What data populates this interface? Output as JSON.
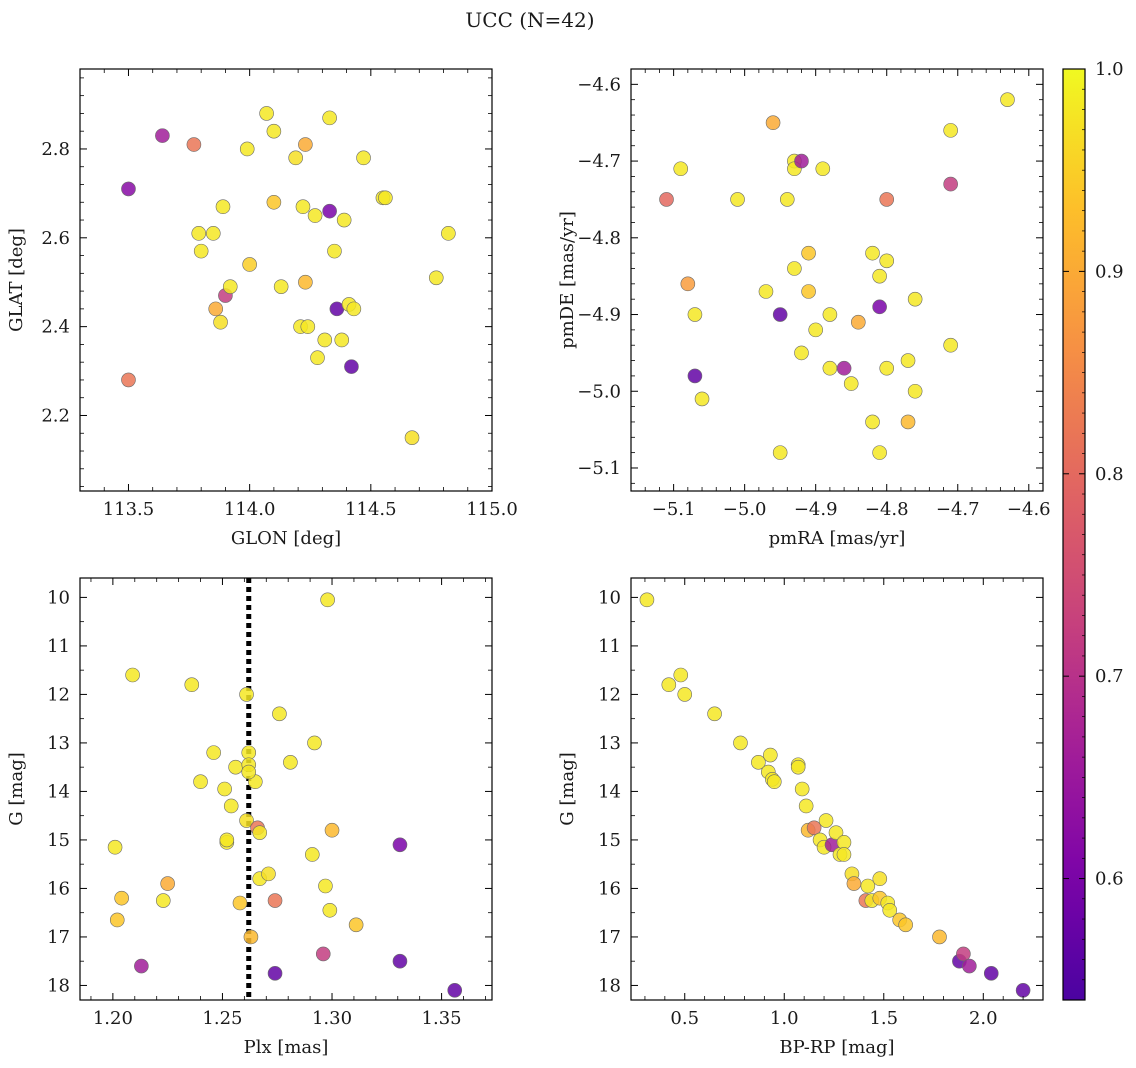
{
  "figure": {
    "title": "UCC (N=42)"
  },
  "colorbar": {
    "min": 0.54,
    "max": 1.0,
    "ticks": [
      0.6,
      0.7,
      0.8,
      0.9,
      1.0
    ],
    "tick_labels": [
      "0.6",
      "0.7",
      "0.8",
      "0.9",
      "1.0"
    ],
    "colormap": "plasma"
  },
  "chart_data": [
    {
      "type": "scatter",
      "name": "position",
      "xlabel": "GLON [deg]",
      "ylabel": "GLAT [deg]",
      "xlim": [
        113.3,
        115.0
      ],
      "ylim": [
        2.03,
        2.98
      ],
      "xticks": [
        113.5,
        114.0,
        114.5,
        115.0
      ],
      "xtick_labels": [
        "113.5",
        "114.0",
        "114.5",
        "115.0"
      ],
      "yticks": [
        2.2,
        2.4,
        2.6,
        2.8
      ],
      "ytick_labels": [
        "2.2",
        "2.4",
        "2.6",
        "2.8"
      ],
      "x": [
        113.5,
        113.5,
        113.64,
        113.77,
        113.79,
        113.8,
        113.85,
        113.86,
        113.88,
        113.89,
        113.9,
        113.92,
        113.99,
        114.0,
        114.07,
        114.1,
        114.1,
        114.13,
        114.19,
        114.21,
        114.22,
        114.23,
        114.23,
        114.24,
        114.27,
        114.28,
        114.31,
        114.33,
        114.33,
        114.35,
        114.36,
        114.38,
        114.39,
        114.41,
        114.42,
        114.43,
        114.47,
        114.55,
        114.56,
        114.67,
        114.77,
        114.82
      ],
      "y": [
        2.71,
        2.28,
        2.83,
        2.81,
        2.61,
        2.57,
        2.61,
        2.44,
        2.41,
        2.67,
        2.47,
        2.49,
        2.8,
        2.54,
        2.88,
        2.84,
        2.68,
        2.49,
        2.78,
        2.4,
        2.67,
        2.5,
        2.81,
        2.4,
        2.65,
        2.33,
        2.37,
        2.66,
        2.87,
        2.57,
        2.44,
        2.37,
        2.64,
        2.45,
        2.31,
        2.44,
        2.78,
        2.69,
        2.69,
        2.15,
        2.51,
        2.61
      ],
      "c": [
        0.62,
        0.82,
        0.66,
        0.82,
        0.98,
        0.98,
        0.98,
        0.9,
        0.97,
        0.98,
        0.72,
        0.98,
        0.98,
        0.95,
        0.98,
        0.98,
        0.94,
        0.98,
        0.97,
        0.98,
        0.98,
        0.92,
        0.9,
        0.98,
        0.98,
        0.98,
        0.98,
        0.6,
        0.98,
        0.98,
        0.57,
        0.98,
        0.98,
        0.98,
        0.57,
        0.98,
        0.98,
        0.98,
        0.98,
        0.97,
        0.98,
        0.98
      ]
    },
    {
      "type": "scatter",
      "name": "proper-motion",
      "xlabel": "pmRA [mas/yr]",
      "ylabel": "pmDE [mas/yr]",
      "xlim": [
        -5.16,
        -4.58
      ],
      "ylim": [
        -5.13,
        -4.58
      ],
      "xticks": [
        -5.1,
        -5.0,
        -4.9,
        -4.8,
        -4.7,
        -4.6
      ],
      "xtick_labels": [
        "−5.1",
        "−5.0",
        "−4.9",
        "−4.8",
        "−4.7",
        "−4.6"
      ],
      "yticks": [
        -5.1,
        -5.0,
        -4.9,
        -4.8,
        -4.7,
        -4.6
      ],
      "ytick_labels": [
        "−5.1",
        "−5.0",
        "−4.9",
        "−4.8",
        "−4.7",
        "−4.6"
      ],
      "x": [
        -5.11,
        -5.09,
        -5.08,
        -5.07,
        -5.07,
        -5.06,
        -5.01,
        -4.97,
        -4.96,
        -4.95,
        -4.95,
        -4.94,
        -4.93,
        -4.93,
        -4.93,
        -4.92,
        -4.92,
        -4.91,
        -4.91,
        -4.9,
        -4.89,
        -4.88,
        -4.88,
        -4.86,
        -4.85,
        -4.84,
        -4.82,
        -4.82,
        -4.81,
        -4.81,
        -4.81,
        -4.8,
        -4.8,
        -4.8,
        -4.77,
        -4.77,
        -4.76,
        -4.76,
        -4.71,
        -4.71,
        -4.71,
        -4.63
      ],
      "y": [
        -4.75,
        -4.71,
        -4.86,
        -4.98,
        -4.9,
        -5.01,
        -4.75,
        -4.87,
        -4.65,
        -4.9,
        -5.08,
        -4.75,
        -4.7,
        -4.71,
        -4.84,
        -4.7,
        -4.95,
        -4.82,
        -4.87,
        -4.92,
        -4.71,
        -4.97,
        -4.9,
        -4.97,
        -4.99,
        -4.91,
        -4.82,
        -5.04,
        -4.85,
        -4.89,
        -5.08,
        -4.83,
        -4.75,
        -4.97,
        -4.96,
        -5.04,
        -4.88,
        -5.0,
        -4.73,
        -4.66,
        -4.94,
        -4.62
      ],
      "c": [
        0.8,
        0.98,
        0.88,
        0.57,
        0.98,
        0.98,
        0.98,
        0.98,
        0.9,
        0.57,
        0.98,
        0.98,
        0.98,
        0.98,
        0.98,
        0.66,
        0.98,
        0.94,
        0.94,
        0.98,
        0.98,
        0.98,
        0.98,
        0.66,
        0.98,
        0.9,
        0.98,
        0.98,
        0.98,
        0.6,
        0.98,
        0.98,
        0.82,
        0.98,
        0.98,
        0.92,
        0.98,
        0.98,
        0.72,
        0.98,
        0.98,
        0.98
      ]
    },
    {
      "type": "scatter",
      "name": "parallax-magnitude",
      "xlabel": "Plx [mas]",
      "ylabel": "G [mag]",
      "xlim": [
        1.185,
        1.373
      ],
      "ylim": [
        18.3,
        9.6
      ],
      "xticks": [
        1.2,
        1.25,
        1.3,
        1.35
      ],
      "xtick_labels": [
        "1.20",
        "1.25",
        "1.30",
        "1.35"
      ],
      "yticks": [
        10,
        11,
        12,
        13,
        14,
        15,
        16,
        17,
        18
      ],
      "ytick_labels": [
        "10",
        "11",
        "12",
        "13",
        "14",
        "15",
        "16",
        "17",
        "18"
      ],
      "vline": 1.262,
      "x": [
        1.201,
        1.202,
        1.204,
        1.209,
        1.213,
        1.223,
        1.225,
        1.236,
        1.24,
        1.246,
        1.251,
        1.252,
        1.252,
        1.254,
        1.256,
        1.258,
        1.261,
        1.261,
        1.262,
        1.262,
        1.263,
        1.265,
        1.266,
        1.267,
        1.267,
        1.271,
        1.274,
        1.274,
        1.276,
        1.281,
        1.291,
        1.292,
        1.296,
        1.297,
        1.298,
        1.299,
        1.3,
        1.311,
        1.331,
        1.331,
        1.356,
        1.262
      ],
      "y": [
        15.15,
        16.65,
        16.2,
        11.6,
        17.6,
        16.25,
        15.9,
        11.8,
        13.8,
        13.2,
        13.95,
        15.05,
        15.0,
        14.3,
        13.5,
        16.3,
        12.0,
        14.6,
        13.2,
        13.45,
        17.0,
        13.8,
        14.75,
        14.85,
        15.8,
        15.7,
        16.25,
        17.75,
        12.4,
        13.4,
        15.3,
        13.0,
        17.35,
        15.95,
        10.05,
        16.45,
        14.8,
        16.75,
        15.1,
        17.5,
        18.1,
        13.6
      ],
      "c": [
        0.98,
        0.94,
        0.94,
        0.98,
        0.66,
        0.98,
        0.9,
        0.98,
        0.98,
        0.98,
        0.98,
        0.98,
        0.98,
        0.98,
        0.98,
        0.94,
        0.98,
        0.97,
        0.98,
        0.98,
        0.92,
        0.98,
        0.82,
        0.98,
        0.98,
        0.97,
        0.82,
        0.57,
        0.98,
        0.98,
        0.98,
        0.98,
        0.72,
        0.98,
        0.98,
        0.98,
        0.92,
        0.94,
        0.6,
        0.57,
        0.57,
        0.98
      ]
    },
    {
      "type": "scatter",
      "name": "color-magnitude",
      "xlabel": "BP-RP [mag]",
      "ylabel": "G [mag]",
      "xlim": [
        0.23,
        2.3
      ],
      "ylim": [
        18.3,
        9.6
      ],
      "xticks": [
        0.5,
        1.0,
        1.5,
        2.0
      ],
      "xtick_labels": [
        "0.5",
        "1.0",
        "1.5",
        "2.0"
      ],
      "yticks": [
        10,
        11,
        12,
        13,
        14,
        15,
        16,
        17,
        18
      ],
      "ytick_labels": [
        "10",
        "11",
        "12",
        "13",
        "14",
        "15",
        "16",
        "17",
        "18"
      ],
      "x": [
        0.31,
        0.42,
        0.48,
        0.5,
        0.65,
        0.78,
        0.87,
        0.92,
        0.93,
        0.94,
        0.95,
        1.07,
        1.07,
        1.09,
        1.11,
        1.12,
        1.15,
        1.18,
        1.2,
        1.21,
        1.24,
        1.26,
        1.28,
        1.3,
        1.3,
        1.34,
        1.35,
        1.41,
        1.42,
        1.44,
        1.48,
        1.48,
        1.52,
        1.53,
        1.58,
        1.61,
        1.78,
        1.88,
        1.9,
        1.93,
        2.04,
        2.2
      ],
      "y": [
        10.05,
        11.8,
        11.6,
        12.0,
        12.4,
        13.0,
        13.4,
        13.6,
        13.25,
        13.75,
        13.8,
        13.45,
        13.5,
        13.95,
        14.3,
        14.8,
        14.75,
        15.0,
        15.15,
        14.6,
        15.1,
        14.85,
        15.3,
        15.05,
        15.3,
        15.7,
        15.9,
        16.25,
        15.95,
        16.25,
        15.8,
        16.2,
        16.3,
        16.45,
        16.65,
        16.75,
        17.0,
        17.5,
        17.35,
        17.6,
        17.75,
        18.1
      ],
      "c": [
        0.98,
        0.98,
        0.98,
        0.98,
        0.98,
        0.98,
        0.98,
        0.98,
        0.98,
        0.98,
        0.98,
        0.98,
        0.98,
        0.98,
        0.98,
        0.92,
        0.82,
        0.98,
        0.98,
        0.98,
        0.66,
        0.98,
        0.98,
        0.98,
        0.98,
        0.97,
        0.9,
        0.82,
        0.98,
        0.98,
        0.97,
        0.94,
        0.98,
        0.98,
        0.94,
        0.94,
        0.92,
        0.57,
        0.72,
        0.66,
        0.57,
        0.57
      ]
    }
  ]
}
